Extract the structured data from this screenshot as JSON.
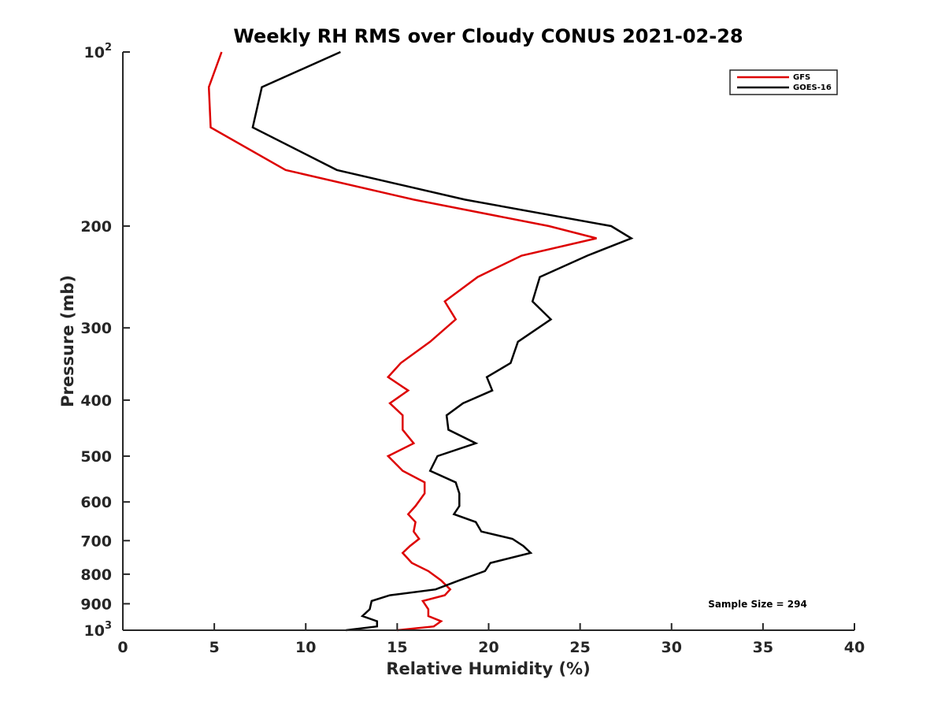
{
  "chart_data": {
    "type": "line",
    "title": "Weekly RH RMS over Cloudy CONUS 2021-02-28",
    "xlabel": "Relative Humidity (%)",
    "ylabel": "Pressure (mb)",
    "xlim": [
      0,
      40
    ],
    "ylim": [
      100,
      1000
    ],
    "y_scale": "log",
    "y_reversed": true,
    "x_ticks": [
      0,
      5,
      10,
      15,
      20,
      25,
      30,
      35,
      40
    ],
    "x_tick_labels": [
      "0",
      "5",
      "10",
      "15",
      "20",
      "25",
      "30",
      "35",
      "40"
    ],
    "y_ticks": [
      {
        "value": 100,
        "label": "10",
        "sup": "2"
      },
      {
        "value": 200,
        "label": "200",
        "sup": ""
      },
      {
        "value": 300,
        "label": "300",
        "sup": ""
      },
      {
        "value": 400,
        "label": "400",
        "sup": ""
      },
      {
        "value": 500,
        "label": "500",
        "sup": ""
      },
      {
        "value": 600,
        "label": "600",
        "sup": ""
      },
      {
        "value": 700,
        "label": "700",
        "sup": ""
      },
      {
        "value": 800,
        "label": "800",
        "sup": ""
      },
      {
        "value": 900,
        "label": "900",
        "sup": ""
      },
      {
        "value": 1000,
        "label": "10",
        "sup": "3"
      }
    ],
    "grid": false,
    "legend_position": "top-right",
    "annotation": "Sample Size = 294",
    "series": [
      {
        "name": "GFS",
        "color": "#dd0000",
        "points": [
          [
            5.4,
            100
          ],
          [
            4.7,
            115
          ],
          [
            4.8,
            135
          ],
          [
            8.9,
            160
          ],
          [
            15.9,
            180
          ],
          [
            23.3,
            200
          ],
          [
            25.9,
            210
          ],
          [
            21.8,
            225
          ],
          [
            19.4,
            245
          ],
          [
            17.6,
            270
          ],
          [
            18.2,
            290
          ],
          [
            16.8,
            317
          ],
          [
            15.2,
            345
          ],
          [
            14.5,
            365
          ],
          [
            15.6,
            385
          ],
          [
            14.6,
            405
          ],
          [
            15.3,
            425
          ],
          [
            15.3,
            450
          ],
          [
            15.9,
            475
          ],
          [
            14.5,
            500
          ],
          [
            15.3,
            530
          ],
          [
            16.5,
            555
          ],
          [
            16.5,
            580
          ],
          [
            16.0,
            610
          ],
          [
            15.6,
            630
          ],
          [
            16.0,
            650
          ],
          [
            15.9,
            675
          ],
          [
            16.2,
            695
          ],
          [
            15.7,
            715
          ],
          [
            15.3,
            735
          ],
          [
            15.8,
            765
          ],
          [
            16.7,
            790
          ],
          [
            17.4,
            820
          ],
          [
            17.9,
            850
          ],
          [
            17.6,
            870
          ],
          [
            16.4,
            890
          ],
          [
            16.7,
            920
          ],
          [
            16.7,
            945
          ],
          [
            17.4,
            965
          ],
          [
            17.0,
            985
          ],
          [
            15.0,
            1000
          ]
        ]
      },
      {
        "name": "GOES-16",
        "color": "#000000",
        "points": [
          [
            11.9,
            100
          ],
          [
            7.6,
            115
          ],
          [
            7.1,
            135
          ],
          [
            11.7,
            160
          ],
          [
            18.7,
            180
          ],
          [
            26.7,
            200
          ],
          [
            27.8,
            210
          ],
          [
            25.4,
            225
          ],
          [
            22.8,
            245
          ],
          [
            22.4,
            270
          ],
          [
            23.4,
            290
          ],
          [
            21.6,
            317
          ],
          [
            21.2,
            345
          ],
          [
            19.9,
            365
          ],
          [
            20.2,
            385
          ],
          [
            18.6,
            405
          ],
          [
            17.7,
            425
          ],
          [
            17.8,
            450
          ],
          [
            19.3,
            475
          ],
          [
            17.2,
            500
          ],
          [
            16.8,
            530
          ],
          [
            18.2,
            555
          ],
          [
            18.4,
            580
          ],
          [
            18.4,
            610
          ],
          [
            18.1,
            630
          ],
          [
            19.3,
            650
          ],
          [
            19.6,
            675
          ],
          [
            21.3,
            695
          ],
          [
            21.9,
            715
          ],
          [
            22.3,
            735
          ],
          [
            20.1,
            765
          ],
          [
            19.8,
            790
          ],
          [
            18.4,
            820
          ],
          [
            17.1,
            850
          ],
          [
            14.6,
            870
          ],
          [
            13.6,
            890
          ],
          [
            13.5,
            920
          ],
          [
            13.1,
            945
          ],
          [
            13.9,
            965
          ],
          [
            13.9,
            985
          ],
          [
            12.2,
            1000
          ]
        ]
      }
    ]
  }
}
